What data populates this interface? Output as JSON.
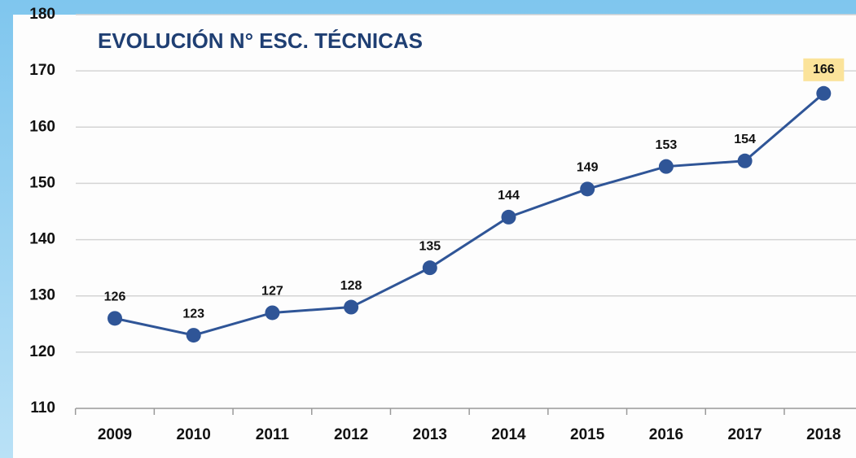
{
  "chart_data": {
    "type": "line",
    "title": "EVOLUCIÓN N° ESC. TÉCNICAS",
    "categories": [
      "2009",
      "2010",
      "2011",
      "2012",
      "2013",
      "2014",
      "2015",
      "2016",
      "2017",
      "2018"
    ],
    "values": [
      126,
      123,
      127,
      128,
      135,
      144,
      149,
      153,
      154,
      166
    ],
    "color": "#2f5597",
    "ylim": [
      110,
      180
    ],
    "yticks": [
      110,
      120,
      130,
      140,
      150,
      160,
      170,
      180
    ],
    "grid": true
  }
}
